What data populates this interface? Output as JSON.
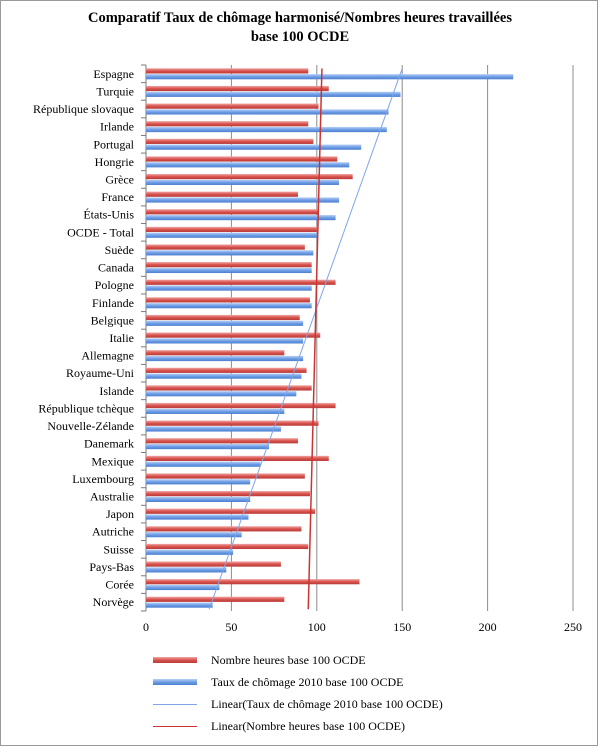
{
  "chart_data": {
    "type": "bar",
    "orientation": "horizontal",
    "title": "Comparatif Taux de chômage harmonisé/Nombres heures travaillées",
    "subtitle": "base 100 OCDE",
    "categories": [
      "Espagne",
      "Turquie",
      "République slovaque",
      "Irlande",
      "Portugal",
      "Hongrie",
      "Grèce",
      "France",
      "États-Unis",
      "OCDE - Total",
      "Suède",
      "Canada",
      "Pologne",
      "Finlande",
      "Belgique",
      "Italie",
      "Allemagne",
      "Royaume-Uni",
      "Islande",
      "République tchèque",
      "Nouvelle-Zélande",
      "Danemark",
      "Mexique",
      "Luxembourg",
      "Australie",
      "Japon",
      "Autriche",
      "Suisse",
      "Pays-Bas",
      "Corée",
      "Norvège"
    ],
    "series": [
      {
        "name": "Nombre heures base 100 OCDE",
        "color": "#d9534f",
        "values": [
          95,
          107,
          101,
          95,
          98,
          112,
          121,
          89,
          101,
          100,
          93,
          97,
          111,
          96,
          90,
          102,
          81,
          94,
          97,
          111,
          101,
          89,
          107,
          93,
          96,
          99,
          91,
          95,
          79,
          125,
          81
        ]
      },
      {
        "name": "Taux de chômage 2010 base 100 OCDE",
        "color": "#5b8fe0",
        "values": [
          215,
          149,
          142,
          141,
          126,
          119,
          113,
          113,
          111,
          100,
          98,
          97,
          97,
          97,
          92,
          92,
          92,
          91,
          88,
          81,
          79,
          72,
          67,
          61,
          61,
          60,
          56,
          51,
          47,
          43,
          39
        ]
      }
    ],
    "trendlines": [
      {
        "name": "Linear(Taux de chômage 2010 base 100 OCDE)",
        "color": "#7ea6e8",
        "from": 150,
        "to": 37
      },
      {
        "name": "Linear(Nombre heures base 100 OCDE)",
        "color": "#cc3333",
        "from": 103,
        "to": 95
      }
    ],
    "xlim": [
      0,
      250
    ],
    "xticks": [
      0,
      50,
      100,
      150,
      200,
      250
    ],
    "grid": true,
    "legend_position": "bottom"
  }
}
